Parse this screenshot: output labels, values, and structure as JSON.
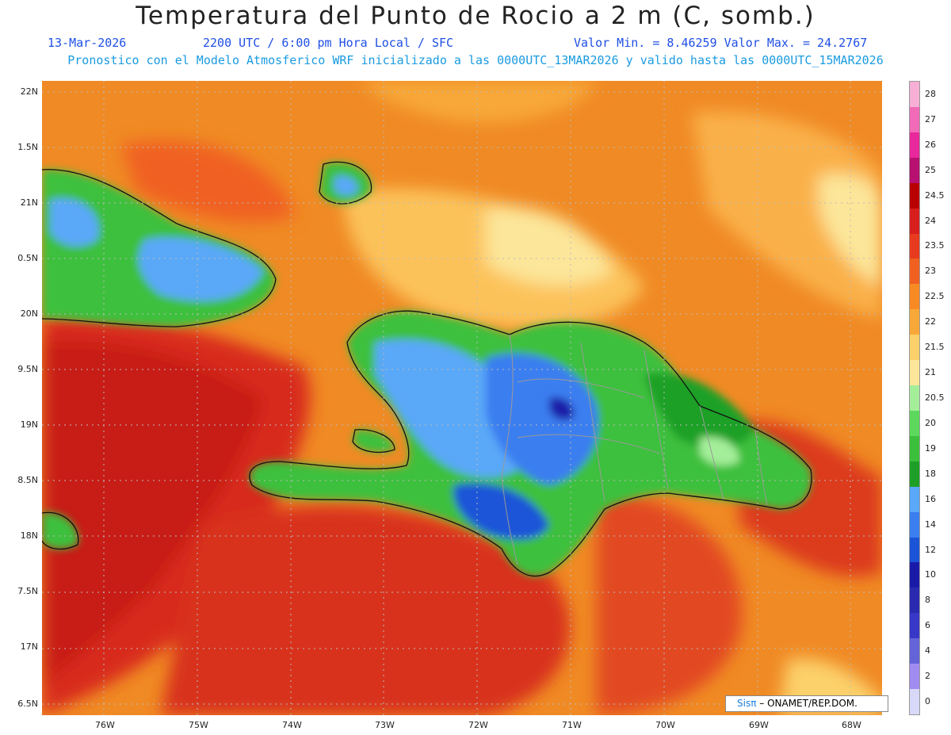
{
  "header": {
    "title": "Temperatura del Punto de Rocio a 2 m (C, somb.)",
    "date": "13-Mar-2026",
    "time": "2200 UTC / 6:00 pm Hora Local / SFC",
    "min_max": "Valor Min. = 8.46259  Valor Max. = 24.2767",
    "model_info": "Pronostico con el Modelo Atmosferico WRF inicializado a las 0000UTC_13MAR2026 y valido hasta las  0000UTC_15MAR2026"
  },
  "axes": {
    "lat_labels": [
      "22N",
      "1.5N",
      "21N",
      "0.5N",
      "20N",
      "9.5N",
      "19N",
      "8.5N",
      "18N",
      "7.5N",
      "17N",
      "6.5N"
    ],
    "lon_labels": [
      "76W",
      "75W",
      "74W",
      "73W",
      "72W",
      "71W",
      "70W",
      "69W",
      "68W"
    ]
  },
  "colorbar": {
    "labels": [
      "28",
      "27",
      "26",
      "25",
      "24.5",
      "24",
      "23.5",
      "23",
      "22.5",
      "22",
      "21.5",
      "21",
      "20.5",
      "20",
      "19",
      "18",
      "16",
      "14",
      "12",
      "10",
      "8",
      "6",
      "4",
      "2",
      "0"
    ],
    "colors": [
      "#f6b0d6",
      "#f06ab8",
      "#e8289c",
      "#b81070",
      "#b80000",
      "#d81e1e",
      "#e83a1e",
      "#f06020",
      "#f88a24",
      "#f8a838",
      "#fcd06a",
      "#fce69a",
      "#a4ee9a",
      "#5cd85c",
      "#3cc03c",
      "#1ea028",
      "#5aa8f8",
      "#3a7ef0",
      "#1c54d8",
      "#1a1aa8",
      "#2a2ab0",
      "#3838c8",
      "#6464d8",
      "#a08cf0",
      "#d8d8f8"
    ]
  },
  "credit": {
    "brand": "Sis",
    "pi": "π",
    "org": " – ONAMET/REP.DOM."
  }
}
